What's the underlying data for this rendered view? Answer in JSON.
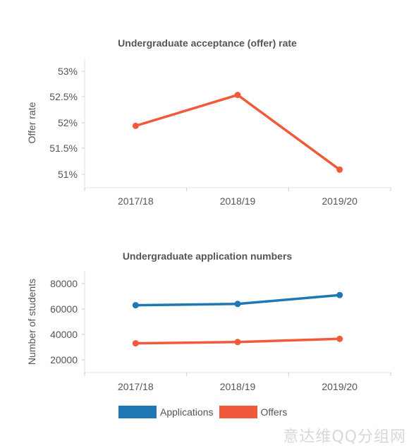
{
  "chart_data": [
    {
      "type": "line",
      "title": "Undergraduate acceptance (offer) rate",
      "ylabel": "Offer rate",
      "xlabel": "",
      "categories": [
        "2017/18",
        "2018/19",
        "2019/20"
      ],
      "yticks": [
        "53%",
        "52.5%",
        "52%",
        "51.5%",
        "51%"
      ],
      "ylim": [
        50.8,
        53.2
      ],
      "grid": false,
      "series": [
        {
          "values": [
            51.94,
            52.54,
            51.09
          ],
          "color": "#f05a3a"
        }
      ]
    },
    {
      "type": "line",
      "title": "Undergraduate application numbers",
      "ylabel": "Number of students",
      "xlabel": "",
      "categories": [
        "2017/18",
        "2018/19",
        "2019/20"
      ],
      "yticks": [
        "80000",
        "60000",
        "40000",
        "20000"
      ],
      "ylim": [
        10000,
        90000
      ],
      "grid": false,
      "legend_position": "bottom",
      "series": [
        {
          "name": "Applications",
          "values": [
            63000,
            64000,
            71000
          ],
          "color": "#1f77b4"
        },
        {
          "name": "Offers",
          "values": [
            33000,
            34000,
            36500
          ],
          "color": "#f05a3a"
        }
      ]
    }
  ],
  "legend": {
    "items": [
      {
        "label": "Applications",
        "color": "#1f77b4"
      },
      {
        "label": "Offers",
        "color": "#f05a3a"
      }
    ]
  },
  "watermark": "意达维QQ分组网"
}
